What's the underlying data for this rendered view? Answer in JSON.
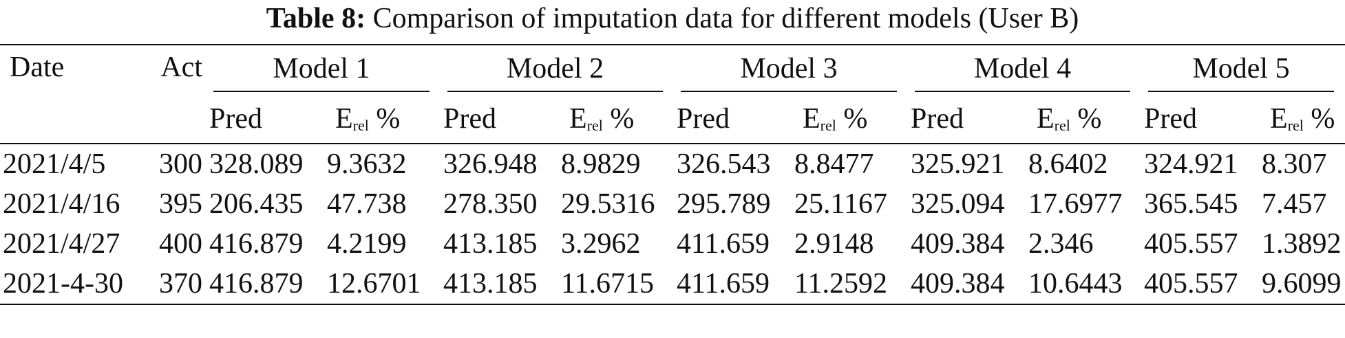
{
  "caption": {
    "label": "Table 8:",
    "text": "Comparison of imputation data for different models (User B)"
  },
  "headers": {
    "date": "Date",
    "act": "Act",
    "models": [
      "Model 1",
      "Model 2",
      "Model 3",
      "Model 4",
      "Model 5"
    ],
    "pred": "Pred",
    "err_main": "E",
    "err_sub": "rel",
    "err_unit": "%"
  },
  "rows": [
    {
      "date": "2021/4/5",
      "act": "300",
      "vals": [
        "328.089",
        "9.3632",
        "326.948",
        "8.9829",
        "326.543",
        "8.8477",
        "325.921",
        "8.6402",
        "324.921",
        "8.307"
      ]
    },
    {
      "date": "2021/4/16",
      "act": "395",
      "vals": [
        "206.435",
        "47.738",
        "278.350",
        "29.5316",
        "295.789",
        "25.1167",
        "325.094",
        "17.6977",
        "365.545",
        "7.457"
      ]
    },
    {
      "date": "2021/4/27",
      "act": "400",
      "vals": [
        "416.879",
        "4.2199",
        "413.185",
        "3.2962",
        "411.659",
        "2.9148",
        "409.384",
        "2.346",
        "405.557",
        "1.3892"
      ]
    },
    {
      "date": "2021-4-30",
      "act": "370",
      "vals": [
        "416.879",
        "12.6701",
        "413.185",
        "11.6715",
        "411.659",
        "11.2592",
        "409.384",
        "10.6443",
        "405.557",
        "9.6099"
      ]
    }
  ]
}
